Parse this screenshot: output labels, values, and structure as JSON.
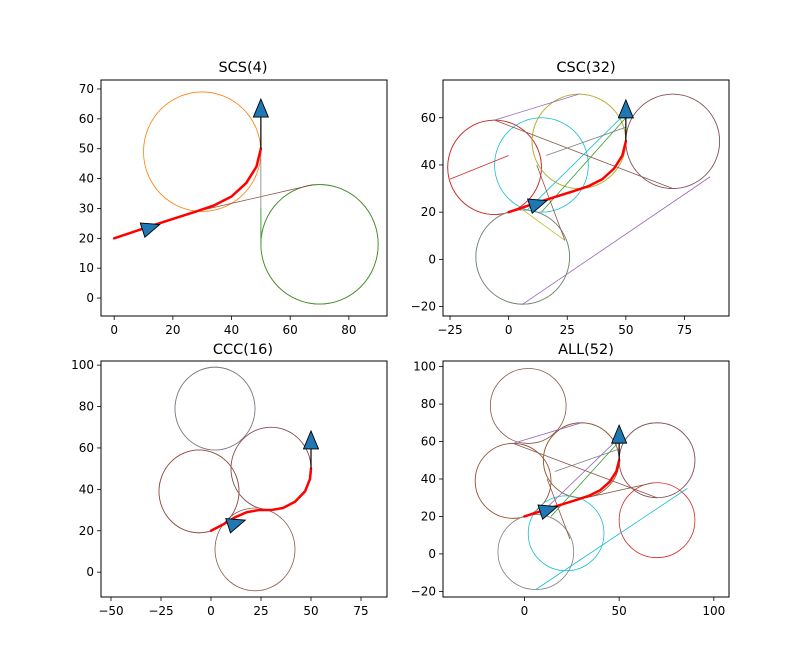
{
  "colors": {
    "path": "#ff0000",
    "arrow_fill": "#1f77b4",
    "palette": [
      "#1f77b4",
      "#ff7f0e",
      "#2ca02c",
      "#d62728",
      "#9467bd",
      "#8c564b",
      "#e377c2",
      "#7f7f7f",
      "#bcbd22",
      "#17becf"
    ]
  },
  "chart_data": [
    {
      "type": "line",
      "title": "SCS(4)",
      "xlabel": "",
      "ylabel": "",
      "xlim": [
        -4.5,
        93
      ],
      "ylim": [
        -6,
        73
      ],
      "xticks": [
        0,
        20,
        40,
        60,
        80
      ],
      "yticks": [
        0,
        10,
        20,
        30,
        40,
        50,
        60,
        70
      ],
      "grid": false,
      "start": {
        "x": 0,
        "y": 20,
        "heading_deg": 18
      },
      "goal": {
        "x": 50,
        "y": 50,
        "heading_deg": 90
      },
      "start_marker": {
        "x": 12,
        "y": 23.5
      },
      "goal_marker": {
        "x": 50,
        "y": 63
      },
      "circles": [
        {
          "cx": 30,
          "cy": 49,
          "r": 20,
          "color": "#ff7f0e"
        },
        {
          "cx": 70,
          "cy": 18,
          "r": 20,
          "color": "#d62728"
        },
        {
          "cx": 70,
          "cy": 18,
          "r": 20,
          "color": "#2ca02c"
        }
      ],
      "segments": [
        {
          "points": [
            [
              28,
              29
            ],
            [
              68,
              38
            ]
          ],
          "color": "#8c564b"
        },
        {
          "points": [
            [
              50,
              50
            ],
            [
              50,
              18
            ]
          ],
          "color": "#7f7f7f"
        },
        {
          "points": [
            [
              50,
              30
            ],
            [
              50,
              18
            ]
          ],
          "color": "#2ca02c"
        }
      ],
      "best_path": [
        [
          0,
          20
        ],
        [
          10,
          23.3
        ],
        [
          20,
          26.5
        ],
        [
          28,
          29
        ],
        [
          34,
          31
        ],
        [
          40,
          34
        ],
        [
          45,
          38.5
        ],
        [
          48.5,
          44
        ],
        [
          50,
          50
        ]
      ]
    },
    {
      "type": "line",
      "title": "CSC(32)",
      "xlabel": "",
      "ylabel": "",
      "xlim": [
        -28,
        94
      ],
      "ylim": [
        -24,
        76
      ],
      "xticks": [
        -25,
        0,
        25,
        50,
        75
      ],
      "yticks": [
        -20,
        0,
        20,
        40,
        60
      ],
      "grid": false,
      "start": {
        "x": 0,
        "y": 20,
        "heading_deg": 18
      },
      "goal": {
        "x": 50,
        "y": 50,
        "heading_deg": 90
      },
      "start_marker": {
        "x": 12,
        "y": 23.5
      },
      "goal_marker": {
        "x": 50,
        "y": 63
      },
      "circles": [
        {
          "cx": -6,
          "cy": 39,
          "r": 20,
          "color": "#8c564b"
        },
        {
          "cx": -6,
          "cy": 39,
          "r": 20,
          "color": "#d62728"
        },
        {
          "cx": 6,
          "cy": 1,
          "r": 20,
          "color": "#2ca02c"
        },
        {
          "cx": 6,
          "cy": 1,
          "r": 20,
          "color": "#7f7f7f"
        },
        {
          "cx": 30,
          "cy": 50,
          "r": 20,
          "color": "#8c564b"
        },
        {
          "cx": 30,
          "cy": 50,
          "r": 20,
          "color": "#bcbd22"
        },
        {
          "cx": 70,
          "cy": 50,
          "r": 20,
          "color": "#9467bd"
        },
        {
          "cx": 70,
          "cy": 50,
          "r": 20,
          "color": "#8c564b"
        },
        {
          "cx": 14,
          "cy": 40,
          "r": 20,
          "color": "#17becf"
        }
      ],
      "segments": [
        {
          "points": [
            [
              -6,
              59
            ],
            [
              30,
              70
            ]
          ],
          "color": "#9467bd"
        },
        {
          "points": [
            [
              -6,
              59
            ],
            [
              70,
              30
            ]
          ],
          "color": "#8c564b"
        },
        {
          "points": [
            [
              6,
              -19
            ],
            [
              86,
              35
            ]
          ],
          "color": "#9467bd"
        },
        {
          "points": [
            [
              -25,
              34
            ],
            [
              0,
              44
            ]
          ],
          "color": "#d62728"
        },
        {
          "points": [
            [
              8,
              21
            ],
            [
              50,
              62
            ]
          ],
          "color": "#17becf"
        },
        {
          "points": [
            [
              14,
              20
            ],
            [
              50,
              60
            ]
          ],
          "color": "#2ca02c"
        },
        {
          "points": [
            [
              6,
              21
            ],
            [
              24,
              8
            ]
          ],
          "color": "#bcbd22"
        },
        {
          "points": [
            [
              12,
              40
            ],
            [
              24,
              8
            ]
          ],
          "color": "#8c564b"
        },
        {
          "points": [
            [
              16,
              44
            ],
            [
              50,
              56
            ]
          ],
          "color": "#7f7f7f"
        }
      ],
      "best_path": [
        [
          0,
          20
        ],
        [
          10,
          23.3
        ],
        [
          20,
          26.5
        ],
        [
          28,
          29
        ],
        [
          34,
          31
        ],
        [
          40,
          34
        ],
        [
          45,
          38.5
        ],
        [
          48.5,
          44
        ],
        [
          50,
          50
        ]
      ]
    },
    {
      "type": "line",
      "title": "CCC(16)",
      "xlabel": "",
      "ylabel": "",
      "xlim": [
        -55,
        88
      ],
      "ylim": [
        -12,
        102
      ],
      "xticks": [
        -50,
        -25,
        0,
        25,
        50,
        75
      ],
      "yticks": [
        0,
        20,
        40,
        60,
        80,
        100
      ],
      "grid": false,
      "start": {
        "x": 0,
        "y": 20,
        "heading_deg": 18
      },
      "goal": {
        "x": 50,
        "y": 50,
        "heading_deg": 90
      },
      "start_marker": {
        "x": 12,
        "y": 23.5
      },
      "goal_marker": {
        "x": 50,
        "y": 63
      },
      "circles": [
        {
          "cx": 2,
          "cy": 79,
          "r": 20,
          "color": "#9467bd"
        },
        {
          "cx": 2,
          "cy": 79,
          "r": 20,
          "color": "#7f7f7f"
        },
        {
          "cx": -6,
          "cy": 39,
          "r": 20,
          "color": "#d62728"
        },
        {
          "cx": -6,
          "cy": 39,
          "r": 20,
          "color": "#8c564b"
        },
        {
          "cx": 30,
          "cy": 50,
          "r": 20,
          "color": "#9467bd"
        },
        {
          "cx": 30,
          "cy": 50,
          "r": 20,
          "color": "#8c564b"
        },
        {
          "cx": 22,
          "cy": 11,
          "r": 20,
          "color": "#8c564b"
        }
      ],
      "segments": [],
      "best_path": [
        [
          0,
          20
        ],
        [
          6,
          23
        ],
        [
          12,
          26.5
        ],
        [
          18,
          29
        ],
        [
          24,
          30
        ],
        [
          30,
          30
        ],
        [
          36,
          31
        ],
        [
          42,
          34
        ],
        [
          47,
          39
        ],
        [
          49.5,
          45
        ],
        [
          50,
          50
        ]
      ]
    },
    {
      "type": "line",
      "title": "ALL(52)",
      "xlabel": "",
      "ylabel": "",
      "xlim": [
        -43,
        108
      ],
      "ylim": [
        -23,
        103
      ],
      "xticks": [
        0,
        50,
        100
      ],
      "yticks": [
        -20,
        0,
        20,
        40,
        60,
        80,
        100
      ],
      "grid": false,
      "start": {
        "x": 0,
        "y": 20,
        "heading_deg": 18
      },
      "goal": {
        "x": 50,
        "y": 50,
        "heading_deg": 90
      },
      "start_marker": {
        "x": 12,
        "y": 23.5
      },
      "goal_marker": {
        "x": 50,
        "y": 63
      },
      "circles": [
        {
          "cx": 2,
          "cy": 79,
          "r": 20,
          "color": "#8c564b"
        },
        {
          "cx": -6,
          "cy": 39,
          "r": 20,
          "color": "#ff7f0e"
        },
        {
          "cx": -6,
          "cy": 39,
          "r": 20,
          "color": "#8c564b"
        },
        {
          "cx": 30,
          "cy": 50,
          "r": 20,
          "color": "#ff7f0e"
        },
        {
          "cx": 30,
          "cy": 50,
          "r": 20,
          "color": "#bcbd22"
        },
        {
          "cx": 30,
          "cy": 50,
          "r": 20,
          "color": "#8c564b"
        },
        {
          "cx": 70,
          "cy": 50,
          "r": 20,
          "color": "#9467bd"
        },
        {
          "cx": 70,
          "cy": 50,
          "r": 20,
          "color": "#8c564b"
        },
        {
          "cx": 70,
          "cy": 18,
          "r": 20,
          "color": "#d62728"
        },
        {
          "cx": 22,
          "cy": 11,
          "r": 20,
          "color": "#17becf"
        },
        {
          "cx": 6,
          "cy": 1,
          "r": 20,
          "color": "#7f7f7f"
        }
      ],
      "segments": [
        {
          "points": [
            [
              -6,
              59
            ],
            [
              30,
              70
            ]
          ],
          "color": "#9467bd"
        },
        {
          "points": [
            [
              -6,
              59
            ],
            [
              70,
              30
            ]
          ],
          "color": "#8c564b"
        },
        {
          "points": [
            [
              6,
              -19
            ],
            [
              86,
              35
            ]
          ],
          "color": "#17becf"
        },
        {
          "points": [
            [
              28,
              29
            ],
            [
              68,
              38
            ]
          ],
          "color": "#8c564b"
        },
        {
          "points": [
            [
              8,
              21
            ],
            [
              50,
              62
            ]
          ],
          "color": "#9467bd"
        },
        {
          "points": [
            [
              14,
              20
            ],
            [
              50,
              60
            ]
          ],
          "color": "#2ca02c"
        },
        {
          "points": [
            [
              12,
              40
            ],
            [
              24,
              8
            ]
          ],
          "color": "#8c564b"
        },
        {
          "points": [
            [
              16,
              44
            ],
            [
              50,
              56
            ]
          ],
          "color": "#7f7f7f"
        }
      ],
      "best_path": [
        [
          0,
          20
        ],
        [
          10,
          23.3
        ],
        [
          20,
          26.5
        ],
        [
          28,
          29
        ],
        [
          34,
          31
        ],
        [
          40,
          34
        ],
        [
          45,
          38.5
        ],
        [
          48.5,
          44
        ],
        [
          50,
          50
        ]
      ]
    }
  ]
}
